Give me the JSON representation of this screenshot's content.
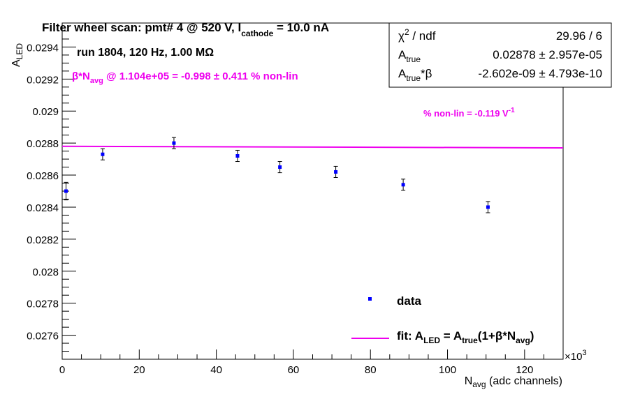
{
  "chart_data": {
    "type": "scatter",
    "title": "Filter wheel scan: pmt#   4 @   520 V, I",
    "title_sub": "cathode",
    "title_tail": " = 10.0 nA",
    "xlabel_main": "N",
    "xlabel_sub": "avg",
    "xlabel_tail": " (adc channels)",
    "ylabel_main": "A",
    "ylabel_sub": "LED",
    "x_multiplier": "×10",
    "x_multiplier_exp": "3",
    "xlim": [
      0,
      130000
    ],
    "ylim": [
      0.02745,
      0.02955
    ],
    "xticks": [
      0,
      20000,
      40000,
      60000,
      80000,
      100000,
      120000
    ],
    "xtick_labels": [
      "0",
      "20",
      "40",
      "60",
      "80",
      "100",
      "120"
    ],
    "yticks": [
      0.0276,
      0.0278,
      0.028,
      0.0282,
      0.0284,
      0.0286,
      0.0288,
      0.029,
      0.0292,
      0.0294
    ],
    "ytick_labels": [
      "0.0276",
      "0.0278",
      "0.028",
      "0.0282",
      "0.0284",
      "0.0286",
      "0.0288",
      "0.029",
      "0.0292",
      "0.0294"
    ],
    "grid": false,
    "series": [
      {
        "name": "data",
        "color": "#0000ff",
        "points": [
          {
            "x": 1000,
            "y": 0.0285,
            "err": 5.5e-05
          },
          {
            "x": 10500,
            "y": 0.02873,
            "err": 3.5e-05
          },
          {
            "x": 29000,
            "y": 0.0288,
            "err": 3.5e-05
          },
          {
            "x": 45500,
            "y": 0.02872,
            "err": 3.5e-05
          },
          {
            "x": 56500,
            "y": 0.02865,
            "err": 3.5e-05
          },
          {
            "x": 71000,
            "y": 0.02862,
            "err": 3.5e-05
          },
          {
            "x": 88500,
            "y": 0.02854,
            "err": 3.5e-05
          },
          {
            "x": 110500,
            "y": 0.0284,
            "err": 3.5e-05
          }
        ]
      }
    ],
    "fit": {
      "color": "#ee00ee",
      "x_range": [
        0,
        130000
      ],
      "a_true": 0.02878,
      "beta": -2.602e-09
    },
    "legend": {
      "position": "bottom-right",
      "data_label": "data",
      "fit_prefix": "fit: A",
      "fit_sub1": "LED",
      "fit_mid": " = A",
      "fit_sub2": "true",
      "fit_mid2": "(1+β*N",
      "fit_sub3": "avg",
      "fit_end": ")"
    },
    "stats": {
      "position": "top-right",
      "rows": [
        {
          "label_main": "χ",
          "label_sup": "2",
          "label_tail": " / ndf",
          "value": "29.96 / 6"
        },
        {
          "label_main": "A",
          "label_sub": "true",
          "value": "0.02878 ± 2.957e-05"
        },
        {
          "label_main": "A",
          "label_sub": "true",
          "label_tail": "*β",
          "value": "-2.602e-09 ± 4.793e-10"
        }
      ]
    },
    "annotations": {
      "run_info": "run 1804, 120 Hz, 1.00 MΩ",
      "beta_prefix": "β*N",
      "beta_sub": "avg",
      "beta_tail": " @ 1.104e+05 = -0.998 ± 0.411 % non-lin",
      "nonlin": "% non-lin = -0.119 V",
      "nonlin_sup": "-1",
      "annotation_color": "#ee00ee"
    }
  }
}
